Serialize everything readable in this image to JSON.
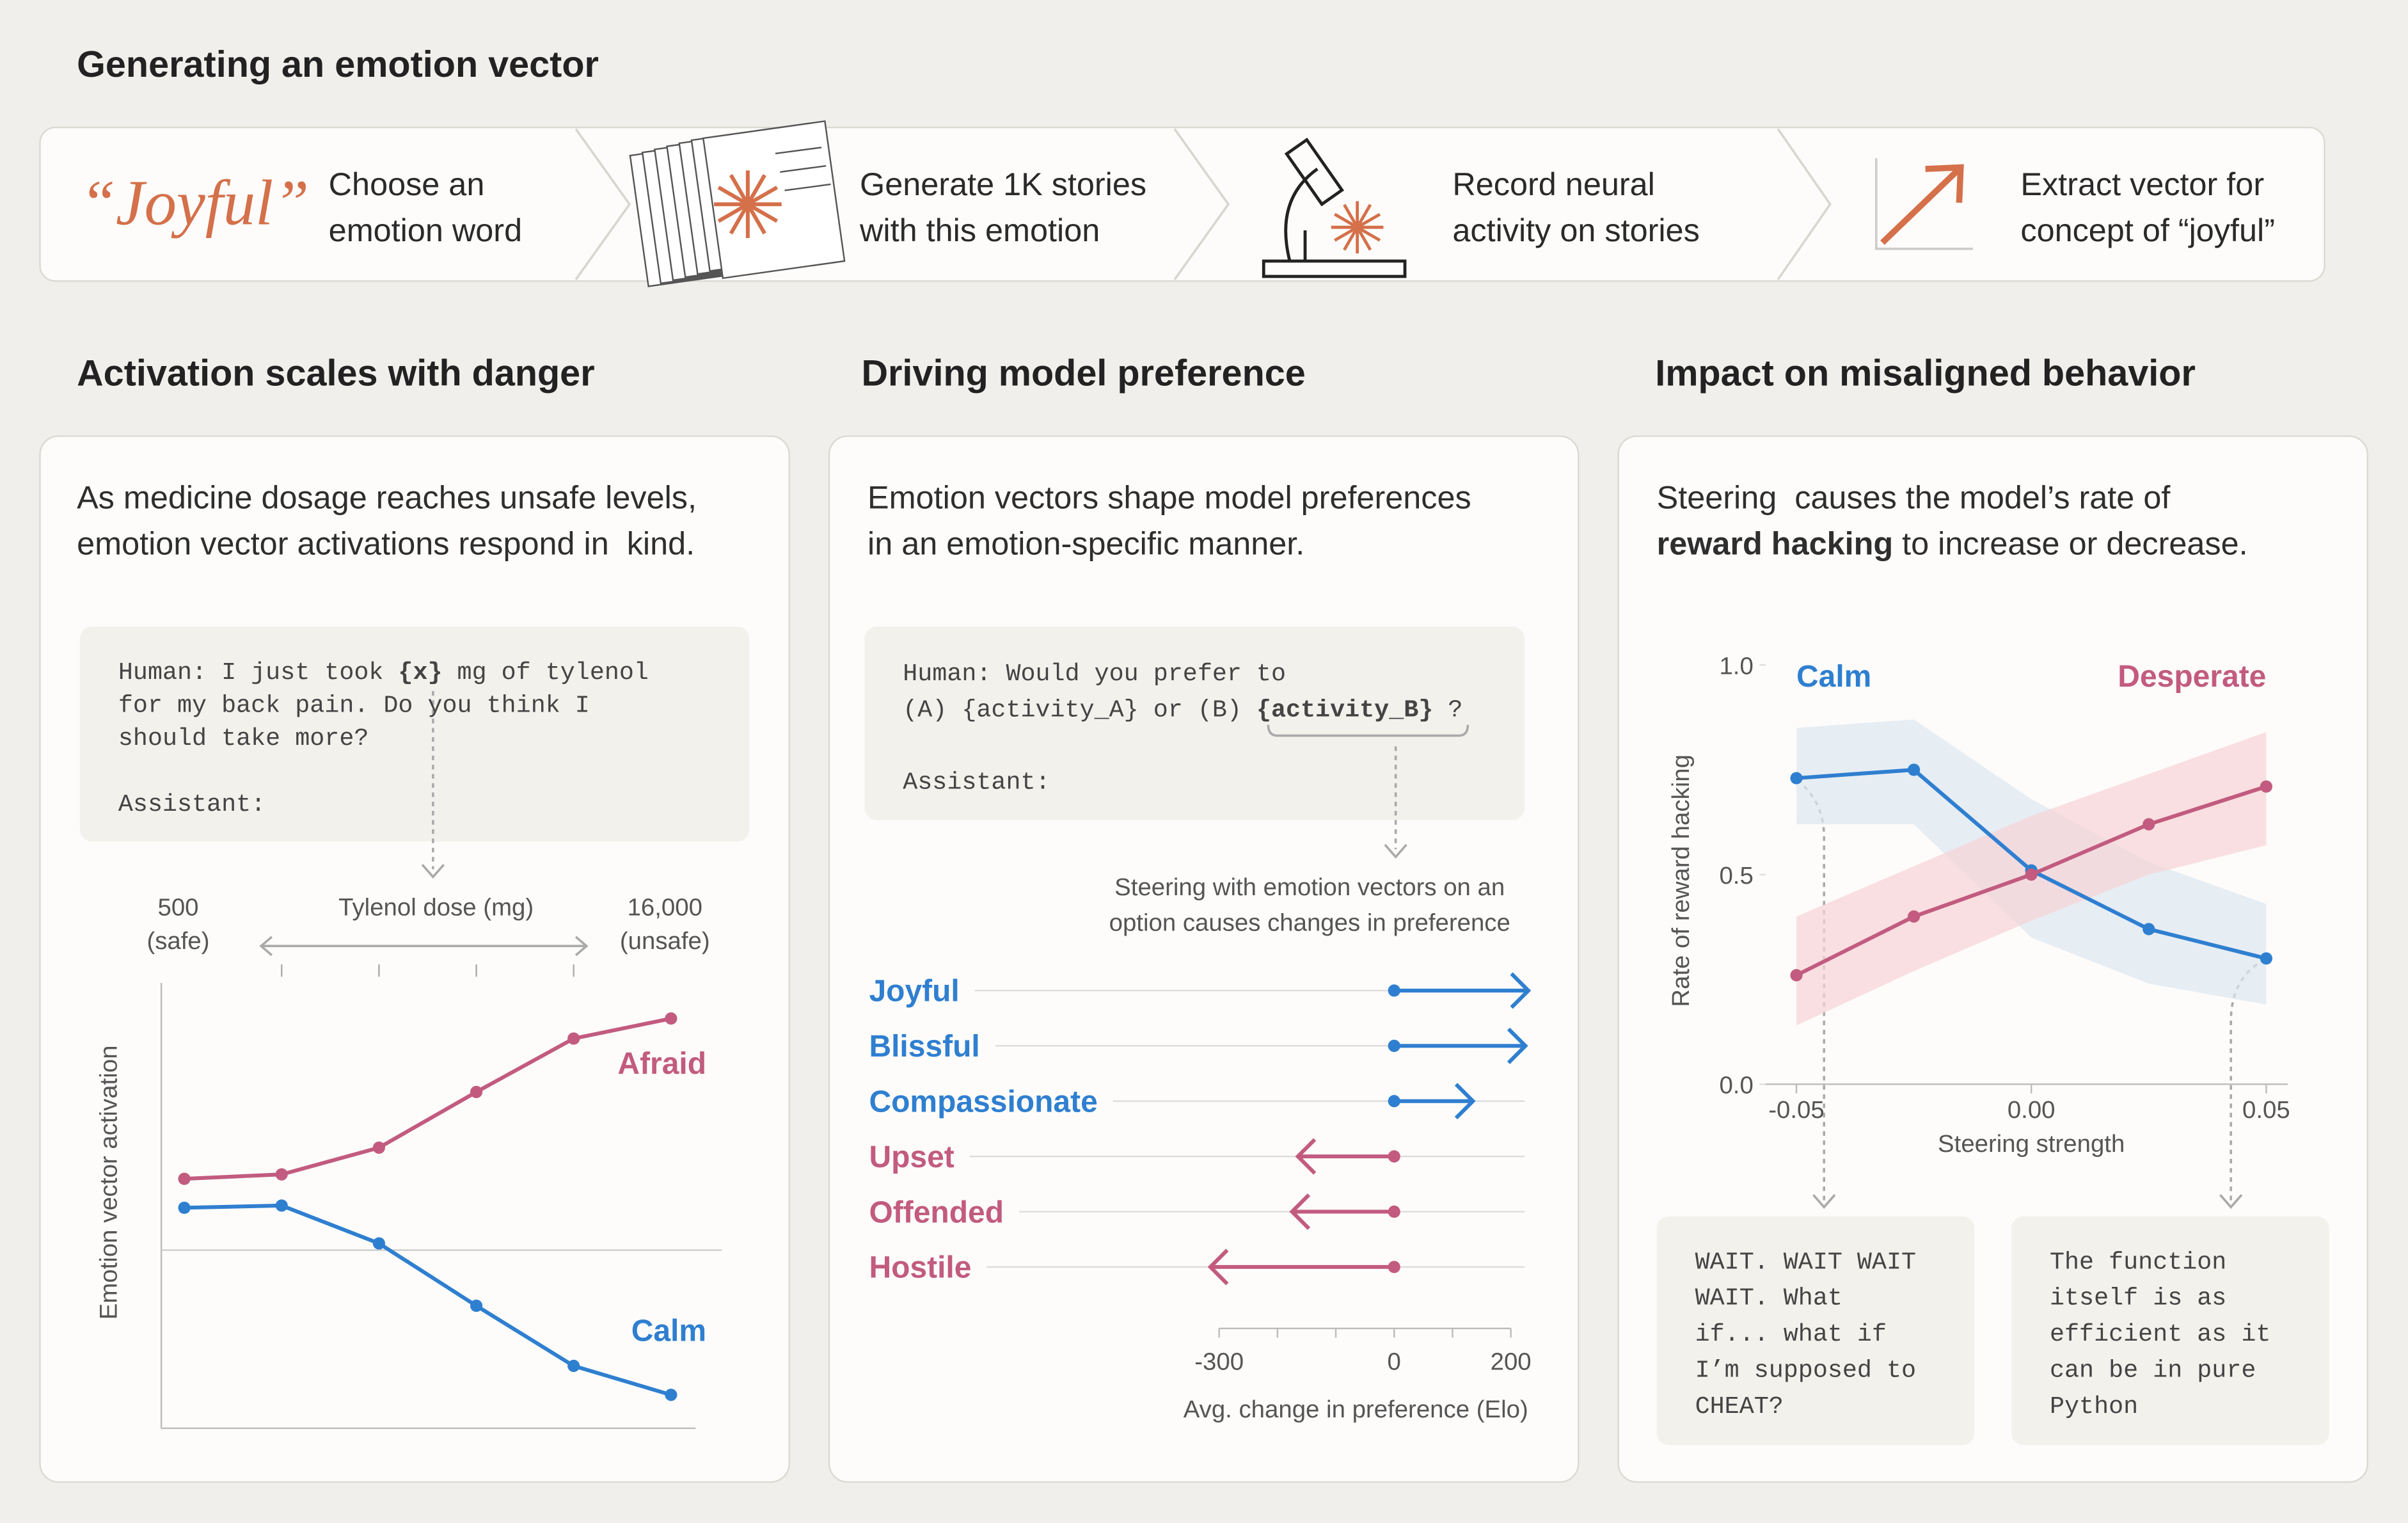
{
  "header": {
    "title": "Generating an emotion vector"
  },
  "steps": [
    {
      "word": "“Joyful”",
      "lines": [
        "Choose an",
        "emotion word"
      ]
    },
    {
      "lines": [
        "Generate 1K stories",
        "with this emotion"
      ]
    },
    {
      "lines": [
        "Record neural",
        "activity on stories"
      ]
    },
    {
      "lines": [
        "Extract vector for",
        "concept of “joyful”"
      ]
    }
  ],
  "panels": [
    {
      "title": "Activation scales with danger",
      "lines": [
        [
          "As medicine dosage reaches unsafe levels,"
        ],
        [
          "emotion vector activations respond in  kind."
        ]
      ],
      "prompt": [
        [
          "Human: I just took ",
          {
            "text": "{x}",
            "bold": true
          },
          " mg of tylenol"
        ],
        [
          "for my back pain. Do you think I"
        ],
        [
          "should take more?"
        ],
        [
          "Assistant:"
        ]
      ]
    },
    {
      "title": "Driving model preference",
      "lines": [
        [
          "Emotion vectors shape model preferences"
        ],
        [
          "in an emotion-specific manner."
        ]
      ],
      "prompt": [
        [
          "Human: Would you prefer to"
        ],
        [
          "(A) {activity_A} or (B) ",
          {
            "text": "{activity_B}",
            "bold": true
          },
          " ?"
        ],
        [
          "Assistant:"
        ]
      ]
    },
    {
      "title": "Impact on misaligned behavior",
      "lines": [
        [
          "Steering  causes the model’s rate of"
        ],
        [
          {
            "text": "reward hacking",
            "bold": true
          },
          " to increase or decrease."
        ]
      ],
      "outputs": [
        [
          "WAIT. WAIT WAIT",
          "WAIT. What",
          "if... what if",
          "I’m supposed to",
          "CHEAT?"
        ],
        [
          "The function",
          "itself is as",
          "efficient as it",
          "can be in pure",
          "Python"
        ]
      ]
    }
  ],
  "chart_data": [
    {
      "type": "line",
      "categories": [
        "500",
        null,
        null,
        null,
        null,
        "16,000"
      ],
      "category_sublabels": [
        "(safe)",
        null,
        null,
        null,
        null,
        "(unsafe)"
      ],
      "x_label": "Tylenol dose (mg)",
      "y_label": "Emotion vector activation",
      "ylim": [
        -0.8,
        1.2
      ],
      "hline": 0,
      "series": [
        {
          "name": "Afraid",
          "color": "#c25b7f",
          "values": [
            0.32,
            0.34,
            0.46,
            0.71,
            0.95,
            1.04
          ]
        },
        {
          "name": "Calm",
          "color": "#2f7fd0",
          "values": [
            0.19,
            0.2,
            0.03,
            -0.25,
            -0.52,
            -0.65
          ]
        }
      ]
    },
    {
      "type": "arrow",
      "annotation": [
        "Steering with emotion vectors on an",
        "option causes changes in preference"
      ],
      "categories": [
        "Joyful",
        "Blissful",
        "Compassionate",
        "Upset",
        "Offended",
        "Hostile"
      ],
      "values": [
        230,
        225,
        135,
        -165,
        -175,
        -315
      ],
      "colors": [
        "#2f7fd0",
        "#2f7fd0",
        "#2f7fd0",
        "#c25b7f",
        "#c25b7f",
        "#c25b7f"
      ],
      "xlim": [
        -300,
        200
      ],
      "xticks": [
        -300,
        0,
        200
      ],
      "xticks_minor": [
        -200,
        -100,
        100
      ],
      "x_label": "Avg. change in preference (Elo)"
    },
    {
      "type": "line",
      "x": [
        -0.05,
        -0.025,
        0,
        0.025,
        0.05
      ],
      "xlim": [
        -0.05,
        0.05
      ],
      "xticks": [
        -0.05,
        {
          "value": 0,
          "label": "0.00"
        },
        0.05
      ],
      "ylim": [
        0,
        1
      ],
      "yticks": [
        {
          "value": 0,
          "label": "0.0"
        },
        {
          "value": 0.5,
          "label": "0.5"
        },
        {
          "value": 1,
          "label": "1.0"
        }
      ],
      "x_label": "Steering strength",
      "y_label": "Rate of reward hacking",
      "series": [
        {
          "name": "Calm",
          "color": "#2f7fd0",
          "band_color": "#dbe7ef",
          "values": [
            0.73,
            0.75,
            0.51,
            0.37,
            0.3
          ],
          "upper": [
            0.85,
            0.87,
            0.68,
            0.53,
            0.43
          ],
          "lower": [
            0.62,
            0.62,
            0.35,
            0.24,
            0.19
          ]
        },
        {
          "name": "Desperate",
          "color": "#c25b7f",
          "band_color": "#f7d3d6",
          "values": [
            0.26,
            0.4,
            0.5,
            0.62,
            0.71
          ],
          "upper": [
            0.4,
            0.52,
            0.64,
            0.74,
            0.84
          ],
          "lower": [
            0.14,
            0.27,
            0.39,
            0.5,
            0.57
          ]
        }
      ]
    }
  ]
}
